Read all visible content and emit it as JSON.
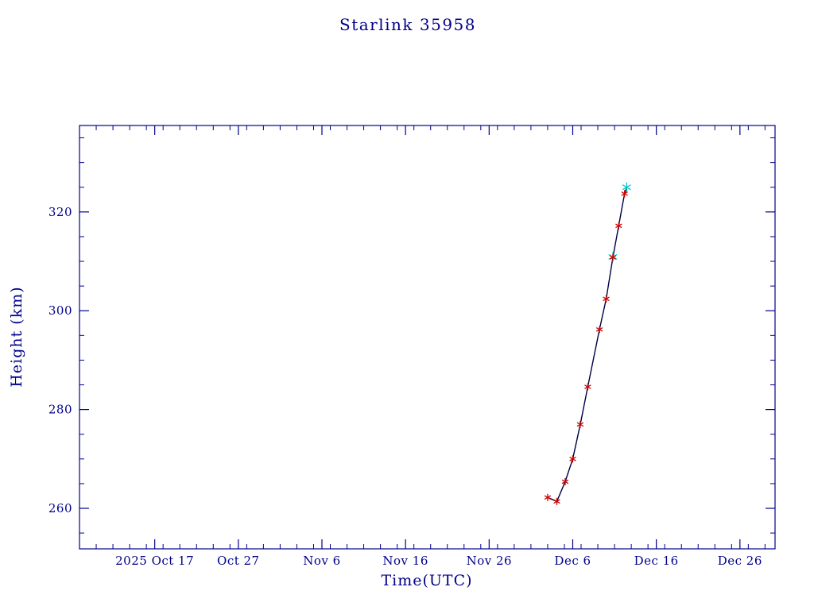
{
  "colors": {
    "background": "#FFFFFF",
    "axis": "#00008B",
    "title": "#00008B",
    "trend_line": "#000045",
    "observation_marker": "#CD0000",
    "latest_marker": "#00CDCD"
  },
  "chart_data": {
    "type": "line",
    "title": "Starlink 35958",
    "xlabel": "Time(UTC)",
    "ylabel": "Height (km)",
    "grid": false,
    "legend": null,
    "x_axis": {
      "unit": "days, 0 = 2025 Oct 8 UTC",
      "min": 0,
      "max": 83.2,
      "minor_step": 2,
      "major_ticks": [
        {
          "t": 9,
          "label": "2025 Oct 17"
        },
        {
          "t": 19,
          "label": "Oct 27"
        },
        {
          "t": 29,
          "label": "Nov 6"
        },
        {
          "t": 39,
          "label": "Nov 16"
        },
        {
          "t": 49,
          "label": "Nov 26"
        },
        {
          "t": 59,
          "label": "Dec 6"
        },
        {
          "t": 69,
          "label": "Dec 16"
        },
        {
          "t": 79,
          "label": "Dec 26"
        }
      ]
    },
    "y_axis": {
      "min": 251.8,
      "max": 337.5,
      "minor_step": 5,
      "major_ticks": [
        260,
        280,
        300,
        320
      ]
    },
    "series": [
      {
        "name": "height-trend-line",
        "type": "line",
        "color": "#000045",
        "points": [
          [
            56.0,
            262.2
          ],
          [
            57.1,
            261.4
          ],
          [
            58.1,
            265.4
          ],
          [
            59.0,
            270.0
          ],
          [
            59.9,
            277.0
          ],
          [
            60.8,
            284.6
          ],
          [
            62.2,
            296.2
          ],
          [
            63.0,
            302.4
          ],
          [
            63.8,
            310.8
          ],
          [
            64.5,
            317.2
          ],
          [
            65.2,
            323.7
          ],
          [
            65.45,
            324.9
          ]
        ]
      },
      {
        "name": "latest-observations",
        "type": "scatter",
        "marker": "asterisk",
        "color": "#00CDCD",
        "marker_size": 5.5,
        "points": [
          [
            63.8,
            310.9
          ],
          [
            65.45,
            325.0
          ]
        ]
      },
      {
        "name": "observed-heights",
        "type": "scatter",
        "marker": "asterisk",
        "color": "#CD0000",
        "marker_size": 4,
        "points": [
          [
            56.0,
            262.2
          ],
          [
            57.1,
            261.4
          ],
          [
            58.1,
            265.4
          ],
          [
            59.0,
            270.0
          ],
          [
            59.9,
            277.0
          ],
          [
            60.8,
            284.6
          ],
          [
            62.2,
            296.2
          ],
          [
            63.0,
            302.4
          ],
          [
            63.8,
            310.8
          ],
          [
            64.5,
            317.2
          ],
          [
            65.2,
            323.7
          ]
        ]
      }
    ]
  }
}
